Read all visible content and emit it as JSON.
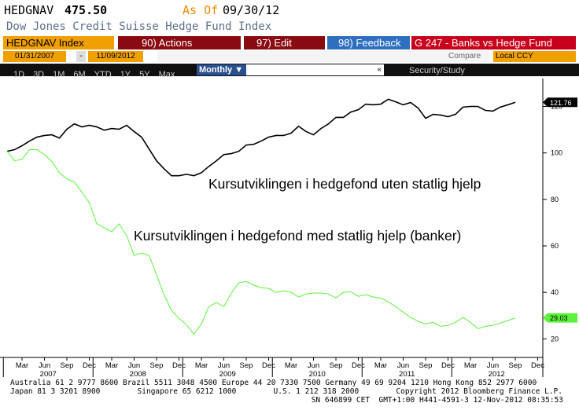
{
  "header": {
    "ticker": "HEDGNAV",
    "price": "475.50",
    "as_of_label": "As Of",
    "as_of_date": "09/30/12",
    "name": "Dow Jones Credit Suisse Hedge Fund Index"
  },
  "toolbar": {
    "security": "HEDGNAV Index",
    "actions": "90) Actions",
    "edit": "97) Edit",
    "feedback": "98) Feedback",
    "chart_name": "G 247 - Banks vs Hedge Fund",
    "start_date": "01/31/2007",
    "date_separator": "-",
    "end_date": "11/09/2012",
    "compare": "Compare",
    "currency": "Local CCY",
    "periods": [
      "1D",
      "3D",
      "1M",
      "6M",
      "YTD",
      "1Y",
      "5Y",
      "Max"
    ],
    "frequency": "Monthly ▼",
    "collapse": "«",
    "security_study": "Security/Study"
  },
  "chart_data": {
    "type": "line",
    "annotations": [
      "Kursutviklingen i hedgefond uten statlig hjelp",
      "Kursutviklingen i hedgefond med statlig hjelp (banker)"
    ],
    "categories": [
      null,
      null,
      "Mar",
      null,
      null,
      "Jun",
      null,
      null,
      "Sep",
      null,
      null,
      "Dec",
      null,
      null,
      "Mar",
      null,
      null,
      "Jun",
      null,
      null,
      "Sep",
      null,
      null,
      "Dec",
      null,
      null,
      "Mar",
      null,
      null,
      "Jun",
      null,
      null,
      "Sep",
      null,
      null,
      "Dec",
      null,
      null,
      "Mar",
      null,
      null,
      "Jun",
      null,
      null,
      "Sep",
      null,
      null,
      "Dec",
      null,
      null,
      "Mar",
      null,
      null,
      "Jun",
      null,
      null,
      "Sep",
      null,
      null,
      "Dec",
      null,
      null,
      "Mar",
      null,
      null,
      "Jun",
      null,
      null,
      "Sep",
      null,
      null,
      "Dec"
    ],
    "x_groups": [
      "2007",
      "2008",
      "2009",
      "2010",
      "2011",
      "2012"
    ],
    "series": [
      {
        "color": "#000000",
        "values": [
          100.7,
          101.4,
          103.1,
          105.1,
          106.8,
          107.5,
          107.8,
          106.4,
          110.2,
          112.5,
          111.2,
          111.9,
          111.2,
          109.8,
          110.5,
          110.2,
          111.9,
          109.2,
          106.8,
          101.7,
          96.6,
          93.2,
          90.2,
          90.2,
          90.8,
          90.2,
          91.5,
          94.2,
          96.6,
          99.3,
          99.7,
          100.7,
          103.4,
          103.7,
          105.1,
          106.8,
          107.5,
          107.5,
          108.5,
          111.5,
          109.2,
          107.8,
          110.5,
          112.5,
          115.3,
          115.3,
          117.6,
          118.6,
          121.0,
          120.7,
          121.0,
          123.1,
          122.0,
          120.7,
          121.7,
          119.3,
          114.9,
          116.6,
          116.3,
          115.6,
          116.6,
          119.7,
          120.0,
          120.0,
          118.3,
          118.0,
          119.7,
          120.7,
          121.76,
          null,
          null,
          null
        ]
      },
      {
        "color": "#5cf23c",
        "values": [
          100.7,
          96.6,
          97.3,
          101.4,
          101.4,
          99.3,
          96.3,
          91.5,
          88.8,
          87.5,
          83.1,
          78.6,
          69.5,
          67.8,
          66.1,
          69.5,
          64.4,
          55.9,
          56.9,
          55.9,
          47.5,
          39.0,
          32.2,
          28.8,
          26.1,
          22.0,
          26.4,
          33.9,
          35.6,
          33.9,
          39.7,
          44.1,
          44.7,
          43.1,
          42.0,
          41.7,
          40.0,
          40.7,
          40.0,
          38.0,
          39.3,
          39.7,
          39.7,
          39.3,
          37.6,
          40.0,
          40.3,
          38.3,
          39.0,
          38.0,
          37.6,
          35.9,
          33.9,
          31.5,
          29.2,
          27.5,
          26.4,
          27.1,
          25.4,
          25.8,
          27.1,
          29.2,
          27.1,
          24.4,
          25.4,
          25.8,
          26.8,
          27.8,
          29.03,
          null,
          null,
          null
        ]
      }
    ],
    "ylim": [
      12,
      132
    ],
    "yticks": [
      20,
      40,
      60,
      80,
      100,
      120
    ],
    "y_axis_side": "right",
    "grid": false,
    "last_value_labels": true
  },
  "footer": {
    "line1": "Australia 61 2 9777 8600 Brazil 5511 3048 4500 Europe 44 20 7330 7500 Germany 49 69 9204 1210 Hong Kong 852 2977 6000",
    "line2": [
      "Japan 81 3 3201 8900",
      "Singapore 65 6212 1000",
      "U.S. 1 212 318 2000",
      "Copyright 2012 Bloomberg Finance L.P."
    ],
    "line3": "SN 646899 CET  GMT+1:00 H441-4591-3 12-Nov-2012 08:35:53"
  }
}
